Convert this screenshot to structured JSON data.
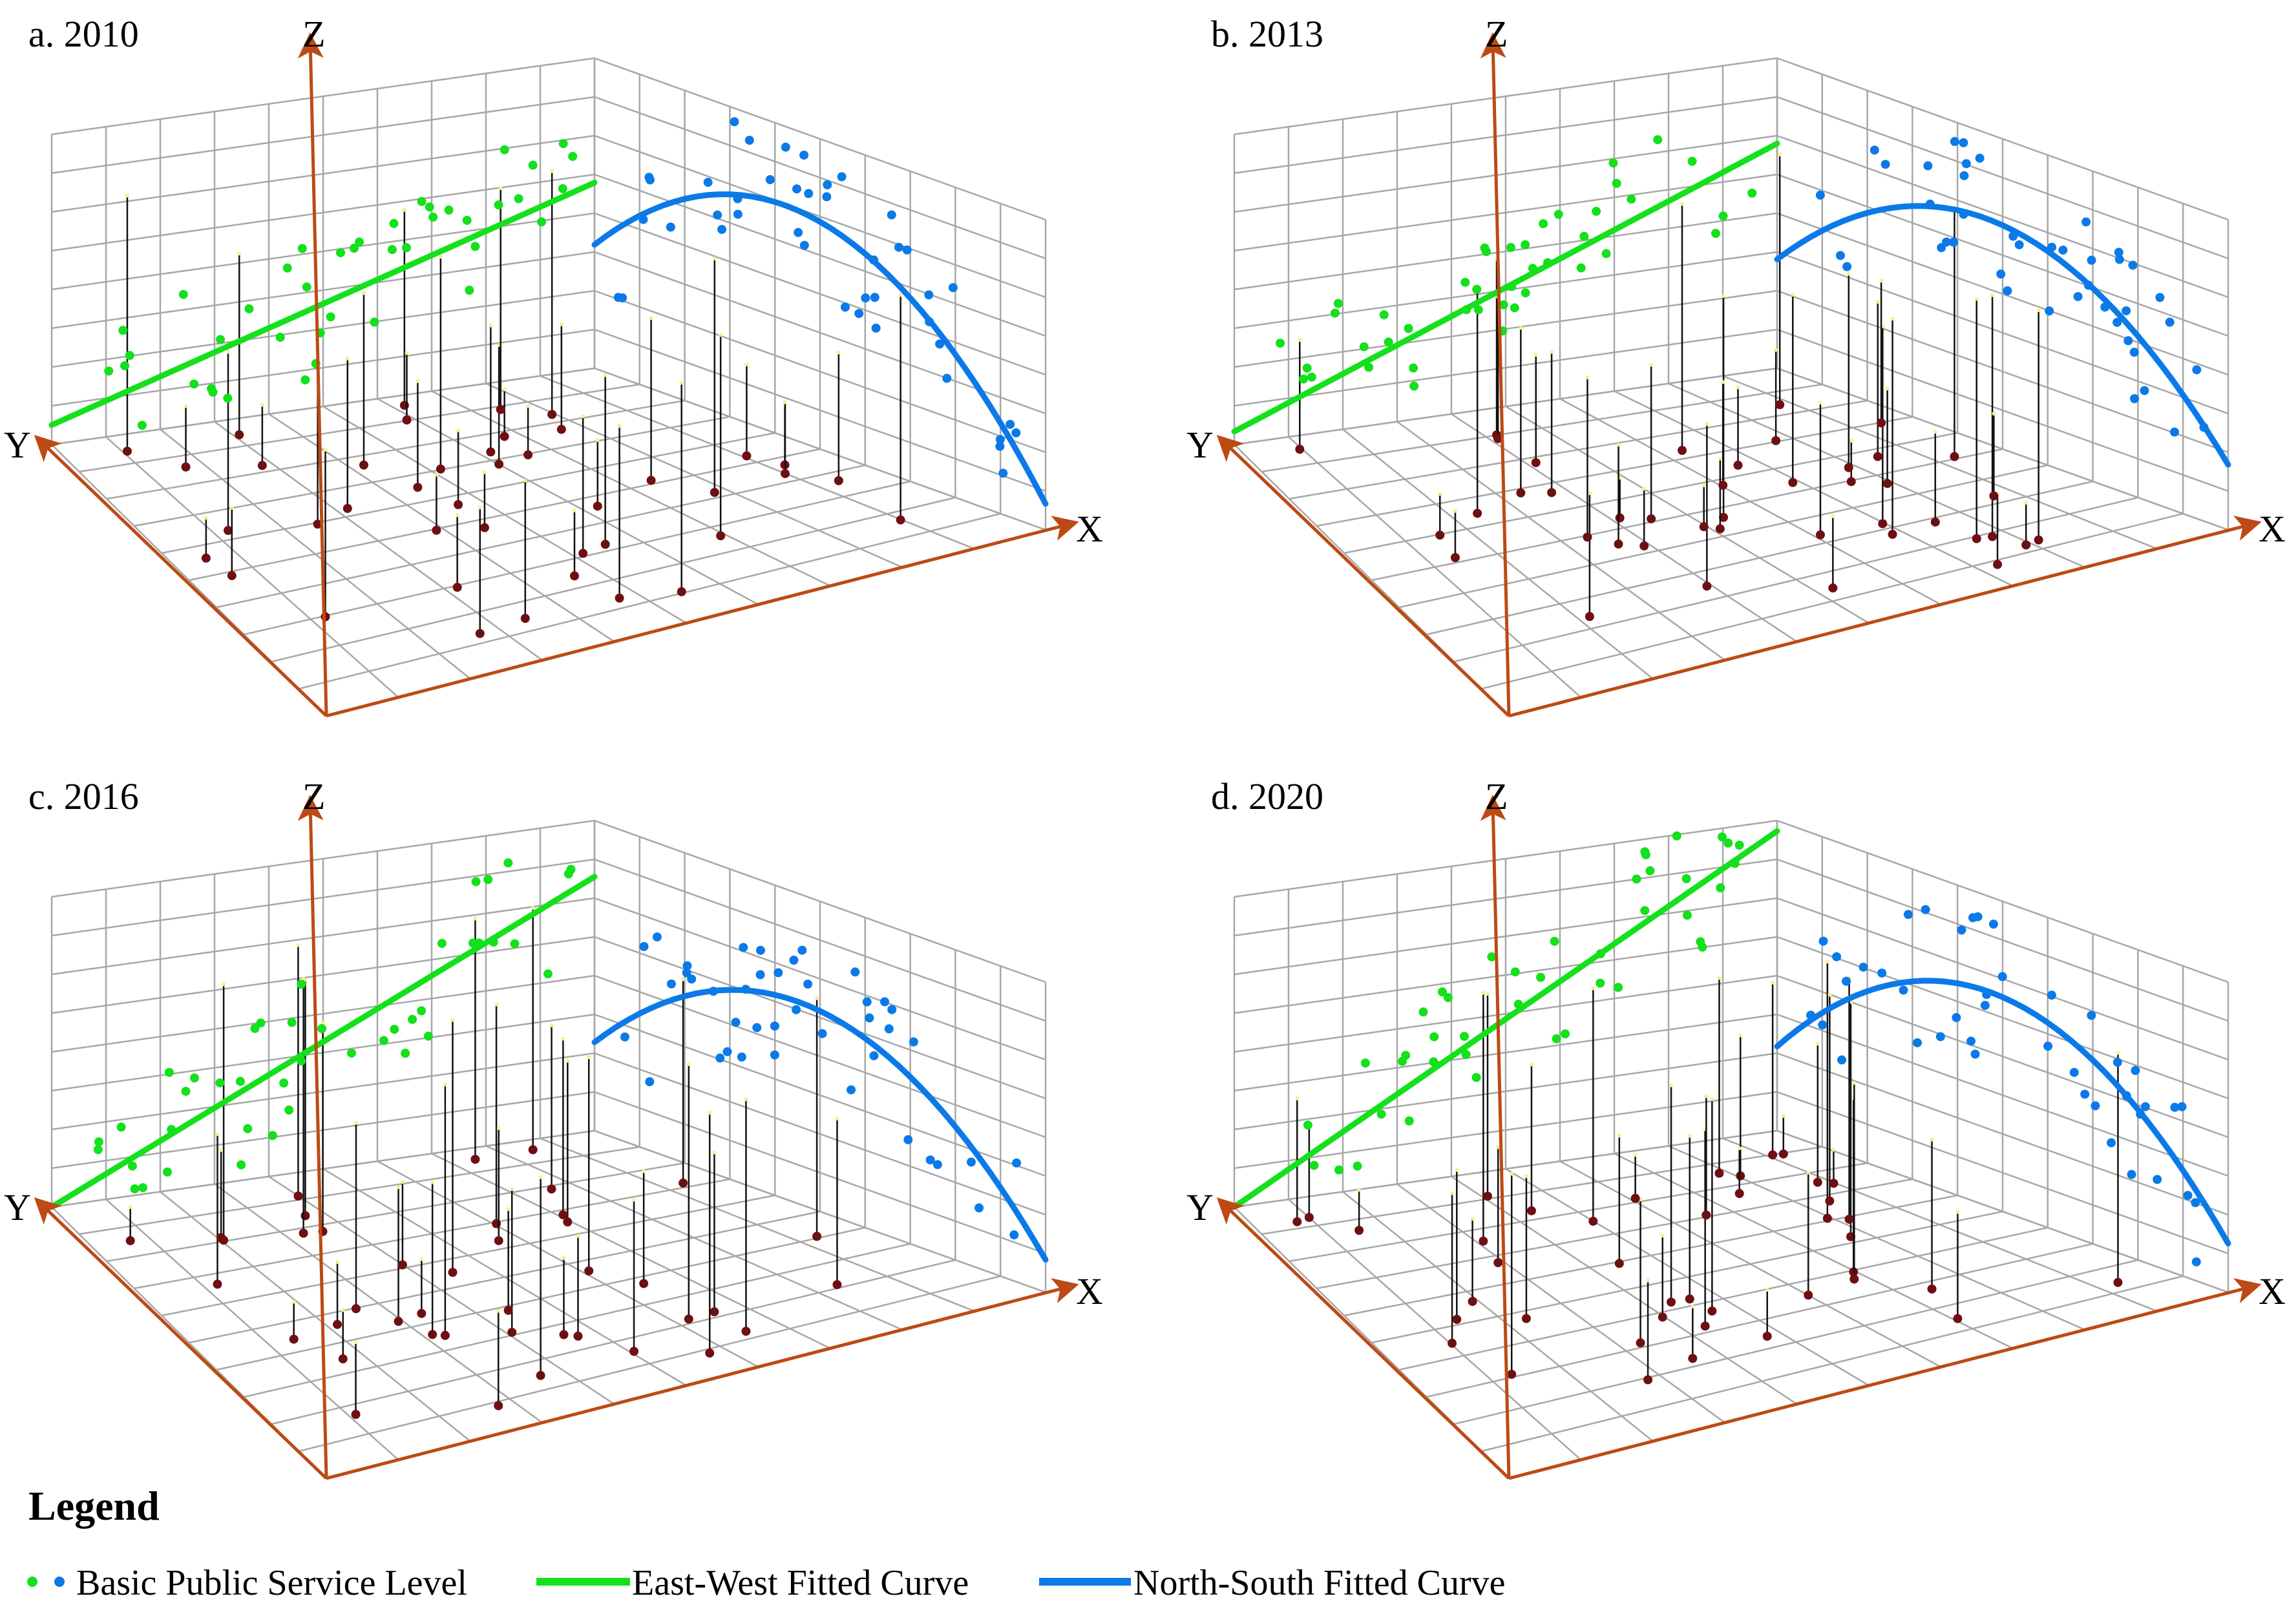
{
  "colors": {
    "east_west": "#14e01b",
    "north_south": "#0b7ae8",
    "axis": "#bd4a14",
    "grid": "#a7a7a7",
    "base_point": "#6e0f12",
    "stem": "#111111"
  },
  "legend": {
    "title": "Legend",
    "points_label": "Basic Public Service Level",
    "ew_label": "East-West Fitted Curve",
    "ns_label": "North-South Fitted Curve"
  },
  "chart_data": [
    {
      "type": "scatter3d",
      "title": "a. 2010",
      "axes": {
        "x": "X",
        "y": "Y",
        "z": "Z"
      },
      "ew_curve": {
        "type": "linear",
        "intercept": 0.06,
        "slope": 0.51
      },
      "ns_curve": {
        "type": "quadratic",
        "vertex_x": 0.42,
        "vertex_z": 0.71,
        "end_z": 0.08
      }
    },
    {
      "type": "scatter3d",
      "title": "b. 2013",
      "axes": {
        "x": "X",
        "y": "Y",
        "z": "Z"
      },
      "ew_curve": {
        "type": "linear",
        "intercept": 0.04,
        "slope": 0.65
      },
      "ns_curve": {
        "type": "quadratic",
        "vertex_x": 0.46,
        "vertex_z": 0.69,
        "end_z": 0.2
      }
    },
    {
      "type": "scatter3d",
      "title": "c. 2016",
      "axes": {
        "x": "X",
        "y": "Y",
        "z": "Z"
      },
      "ew_curve": {
        "type": "linear",
        "intercept": 0.0,
        "slope": 0.78
      },
      "ns_curve": {
        "type": "quadratic",
        "vertex_x": 0.45,
        "vertex_z": 0.62,
        "end_z": 0.1
      }
    },
    {
      "type": "scatter3d",
      "title": "d. 2020",
      "axes": {
        "x": "X",
        "y": "Y",
        "z": "Z"
      },
      "ew_curve": {
        "type": "linear",
        "intercept": 0.0,
        "slope": 0.92
      },
      "ns_curve": {
        "type": "quadratic",
        "vertex_x": 0.47,
        "vertex_z": 0.66,
        "end_z": 0.15
      }
    }
  ]
}
